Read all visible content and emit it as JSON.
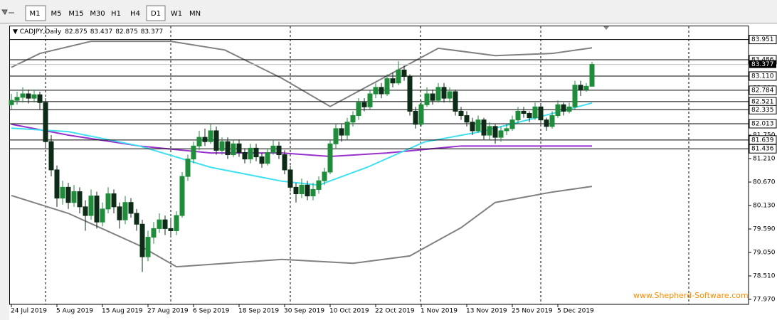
{
  "toolbar": {
    "timeframes": [
      "M1",
      "M5",
      "M15",
      "M30",
      "H1",
      "H4",
      "D1",
      "W1",
      "MN"
    ]
  },
  "chart_data": {
    "type": "candlestick",
    "symbol": "CADJPY,Daily",
    "watermark": "www.Shepherd-Software.com",
    "bull_color": "#1e8c3a",
    "bear_color": "#0d2b16",
    "level_color": "#000000",
    "ylim": [
      77.855,
      84.255
    ],
    "yticks": [
      {
        "value": 77.97,
        "label": "77.970"
      },
      {
        "value": 78.51,
        "label": "78.510"
      },
      {
        "value": 79.05,
        "label": "79.050"
      },
      {
        "value": 79.59,
        "label": "79.590"
      },
      {
        "value": 80.13,
        "label": "80.130"
      },
      {
        "value": 80.67,
        "label": "80.670"
      },
      {
        "value": 81.21,
        "label": "81.210"
      },
      {
        "value": 81.75,
        "label": "81.750"
      },
      {
        "value": 82.29,
        "label": "82.290"
      },
      {
        "value": 82.83,
        "label": "82.830"
      },
      {
        "value": 83.37,
        "label": "83.370"
      },
      {
        "value": 83.91,
        "label": "83.910"
      }
    ],
    "levels": [
      83.951,
      83.486,
      83.11,
      82.784,
      82.521,
      82.335,
      82.013,
      81.639,
      81.436
    ],
    "level_labels": [
      "83.951",
      "83.486",
      "83.110",
      "82.784",
      "82.521",
      "82.335",
      "82.013",
      "81.639",
      "81.436"
    ],
    "categories": [
      "24 Jul 2019",
      null,
      null,
      null,
      null,
      null,
      null,
      null,
      "5 Aug 2019",
      null,
      null,
      null,
      null,
      null,
      null,
      null,
      "15 Aug 2019",
      null,
      null,
      null,
      null,
      null,
      null,
      null,
      "27 Aug 2019",
      null,
      null,
      null,
      null,
      null,
      null,
      null,
      "6 Sep 2019",
      null,
      null,
      null,
      null,
      null,
      null,
      null,
      "18 Sep 2019",
      null,
      null,
      null,
      null,
      null,
      null,
      null,
      "30 Sep 2019",
      null,
      null,
      null,
      null,
      null,
      null,
      null,
      "10 Oct 2019",
      null,
      null,
      null,
      null,
      null,
      null,
      null,
      "22 Oct 2019",
      null,
      null,
      null,
      null,
      null,
      null,
      null,
      "1 Nov 2019",
      null,
      null,
      null,
      null,
      null,
      null,
      null,
      "13 Nov 2019",
      null,
      null,
      null,
      null,
      null,
      null,
      null,
      "25 Nov 2019",
      null,
      null,
      null,
      null,
      null,
      null,
      null,
      "5 Dec 2019",
      null,
      null,
      null,
      null,
      null,
      null
    ],
    "candles": [
      [
        82.45,
        82.7,
        82.35,
        82.55
      ],
      [
        82.55,
        82.75,
        82.45,
        82.62
      ],
      [
        82.62,
        82.85,
        82.5,
        82.7
      ],
      [
        82.7,
        82.8,
        82.48,
        82.6
      ],
      [
        82.6,
        82.8,
        82.5,
        82.68
      ],
      [
        82.68,
        82.75,
        82.35,
        82.5
      ],
      [
        82.5,
        82.6,
        81.45,
        81.6
      ],
      [
        81.6,
        81.75,
        80.8,
        80.95
      ],
      [
        80.95,
        81.05,
        80.1,
        80.3
      ],
      [
        80.3,
        80.7,
        80.15,
        80.55
      ],
      [
        80.55,
        80.65,
        80.05,
        80.2
      ],
      [
        80.2,
        80.6,
        80.1,
        80.45
      ],
      [
        80.45,
        80.55,
        79.95,
        80.1
      ],
      [
        80.1,
        80.25,
        79.55,
        79.9
      ],
      [
        79.9,
        80.5,
        79.8,
        80.35
      ],
      [
        80.35,
        80.45,
        79.6,
        79.75
      ],
      [
        79.75,
        80.2,
        79.65,
        80.05
      ],
      [
        80.05,
        80.55,
        79.95,
        80.4
      ],
      [
        80.4,
        80.5,
        79.95,
        80.1
      ],
      [
        80.1,
        80.2,
        79.6,
        79.8
      ],
      [
        79.8,
        80.35,
        79.7,
        80.2
      ],
      [
        80.2,
        80.3,
        79.85,
        79.95
      ],
      [
        79.95,
        80.05,
        79.55,
        79.7
      ],
      [
        79.7,
        79.8,
        78.6,
        78.95
      ],
      [
        78.95,
        79.55,
        78.85,
        79.4
      ],
      [
        79.4,
        79.75,
        79.25,
        79.6
      ],
      [
        79.6,
        79.95,
        79.5,
        79.8
      ],
      [
        79.8,
        79.9,
        79.45,
        79.6
      ],
      [
        79.6,
        79.85,
        79.4,
        79.55
      ],
      [
        79.55,
        80.0,
        79.45,
        79.9
      ],
      [
        79.9,
        80.9,
        79.85,
        80.8
      ],
      [
        80.8,
        81.3,
        80.7,
        81.2
      ],
      [
        81.2,
        81.6,
        81.1,
        81.5
      ],
      [
        81.5,
        81.85,
        81.4,
        81.7
      ],
      [
        81.7,
        81.9,
        81.5,
        81.6
      ],
      [
        81.6,
        82.0,
        81.55,
        81.85
      ],
      [
        81.85,
        81.95,
        81.3,
        81.4
      ],
      [
        81.4,
        81.7,
        81.3,
        81.6
      ],
      [
        81.6,
        81.7,
        81.2,
        81.3
      ],
      [
        81.3,
        81.65,
        81.25,
        81.55
      ],
      [
        81.55,
        81.65,
        81.25,
        81.35
      ],
      [
        81.35,
        81.45,
        81.1,
        81.2
      ],
      [
        81.2,
        81.55,
        81.1,
        81.45
      ],
      [
        81.45,
        81.55,
        81.15,
        81.25
      ],
      [
        81.25,
        81.35,
        81.0,
        81.1
      ],
      [
        81.1,
        81.45,
        81.05,
        81.35
      ],
      [
        81.35,
        81.65,
        81.3,
        81.5
      ],
      [
        81.5,
        81.6,
        81.2,
        81.3
      ],
      [
        81.3,
        81.4,
        80.85,
        80.95
      ],
      [
        80.95,
        81.05,
        80.45,
        80.55
      ],
      [
        80.55,
        80.65,
        80.2,
        80.4
      ],
      [
        80.4,
        80.75,
        80.3,
        80.6
      ],
      [
        80.6,
        80.7,
        80.25,
        80.35
      ],
      [
        80.35,
        80.65,
        80.25,
        80.5
      ],
      [
        80.5,
        80.8,
        80.4,
        80.7
      ],
      [
        80.7,
        81.0,
        80.6,
        80.9
      ],
      [
        80.9,
        81.65,
        80.85,
        81.55
      ],
      [
        81.55,
        82.0,
        81.45,
        81.9
      ],
      [
        81.9,
        82.0,
        81.6,
        81.75
      ],
      [
        81.75,
        82.15,
        81.65,
        82.05
      ],
      [
        82.05,
        82.3,
        81.95,
        82.2
      ],
      [
        82.2,
        82.6,
        82.1,
        82.5
      ],
      [
        82.5,
        82.6,
        82.3,
        82.4
      ],
      [
        82.4,
        82.8,
        82.35,
        82.7
      ],
      [
        82.7,
        82.95,
        82.6,
        82.85
      ],
      [
        82.85,
        82.95,
        82.6,
        82.7
      ],
      [
        82.7,
        83.15,
        82.65,
        83.05
      ],
      [
        83.05,
        83.2,
        82.85,
        82.95
      ],
      [
        82.95,
        83.45,
        82.9,
        83.25
      ],
      [
        83.25,
        83.35,
        83.0,
        83.1
      ],
      [
        83.1,
        83.15,
        82.2,
        82.3
      ],
      [
        82.3,
        82.4,
        81.9,
        82.0
      ],
      [
        82.0,
        82.55,
        81.95,
        82.45
      ],
      [
        82.45,
        82.85,
        82.4,
        82.7
      ],
      [
        82.7,
        82.8,
        82.45,
        82.55
      ],
      [
        82.55,
        82.95,
        82.5,
        82.85
      ],
      [
        82.85,
        82.95,
        82.5,
        82.6
      ],
      [
        82.6,
        82.85,
        82.5,
        82.75
      ],
      [
        82.75,
        82.8,
        82.2,
        82.3
      ],
      [
        82.3,
        82.4,
        82.1,
        82.2
      ],
      [
        82.2,
        82.3,
        81.95,
        82.05
      ],
      [
        82.05,
        82.15,
        81.75,
        81.85
      ],
      [
        81.85,
        82.2,
        81.8,
        82.1
      ],
      [
        82.1,
        82.15,
        81.65,
        81.75
      ],
      [
        81.75,
        82.05,
        81.65,
        81.95
      ],
      [
        81.95,
        82.0,
        81.55,
        81.7
      ],
      [
        81.7,
        81.95,
        81.6,
        81.85
      ],
      [
        81.85,
        82.0,
        81.75,
        81.9
      ],
      [
        81.9,
        82.2,
        81.85,
        82.1
      ],
      [
        82.1,
        82.4,
        82.0,
        82.3
      ],
      [
        82.3,
        82.4,
        82.15,
        82.25
      ],
      [
        82.25,
        82.3,
        82.05,
        82.15
      ],
      [
        82.15,
        82.5,
        82.1,
        82.4
      ],
      [
        82.4,
        82.45,
        82.0,
        82.1
      ],
      [
        82.1,
        82.15,
        81.85,
        81.95
      ],
      [
        81.95,
        82.3,
        81.9,
        82.2
      ],
      [
        82.2,
        82.55,
        82.15,
        82.45
      ],
      [
        82.45,
        82.5,
        82.2,
        82.3
      ],
      [
        82.3,
        82.5,
        82.25,
        82.4
      ],
      [
        82.4,
        83.0,
        82.35,
        82.9
      ],
      [
        82.9,
        83.0,
        82.65,
        82.8
      ],
      [
        82.8,
        82.95,
        82.75,
        82.875
      ],
      [
        82.875,
        83.437,
        82.875,
        83.377
      ]
    ],
    "series": [
      {
        "color": "#808080",
        "x": [
          0,
          5,
          14,
          28,
          37.5,
          47.5,
          56,
          67.5,
          75,
          85,
          95,
          102
        ],
        "values": [
          83.31,
          83.63,
          83.91,
          83.91,
          83.71,
          83.06,
          82.41,
          83.22,
          83.75,
          83.58,
          83.63,
          83.76
        ]
      },
      {
        "color": "#808080",
        "x": [
          0,
          10,
          22.5,
          29,
          47.5,
          60,
          70,
          79,
          85,
          95,
          102
        ],
        "values": [
          80.36,
          79.95,
          79.21,
          78.72,
          78.89,
          78.8,
          78.97,
          79.62,
          80.2,
          80.44,
          80.57
        ]
      },
      {
        "color": "#9932cc",
        "x": [
          0,
          10,
          22.5,
          35,
          47.5,
          56,
          66,
          79,
          91,
          102
        ],
        "values": [
          82.0,
          81.75,
          81.5,
          81.34,
          81.34,
          81.26,
          81.34,
          81.5,
          81.5,
          81.5
        ]
      },
      {
        "color": "#40e0f0",
        "x": [
          0,
          10,
          22.5,
          35,
          47.5,
          54,
          62.5,
          72.5,
          82.5,
          92.5,
          102
        ],
        "values": [
          81.91,
          81.83,
          81.5,
          81.01,
          80.69,
          80.6,
          81.01,
          81.59,
          81.83,
          82.16,
          82.49
        ]
      }
    ]
  }
}
